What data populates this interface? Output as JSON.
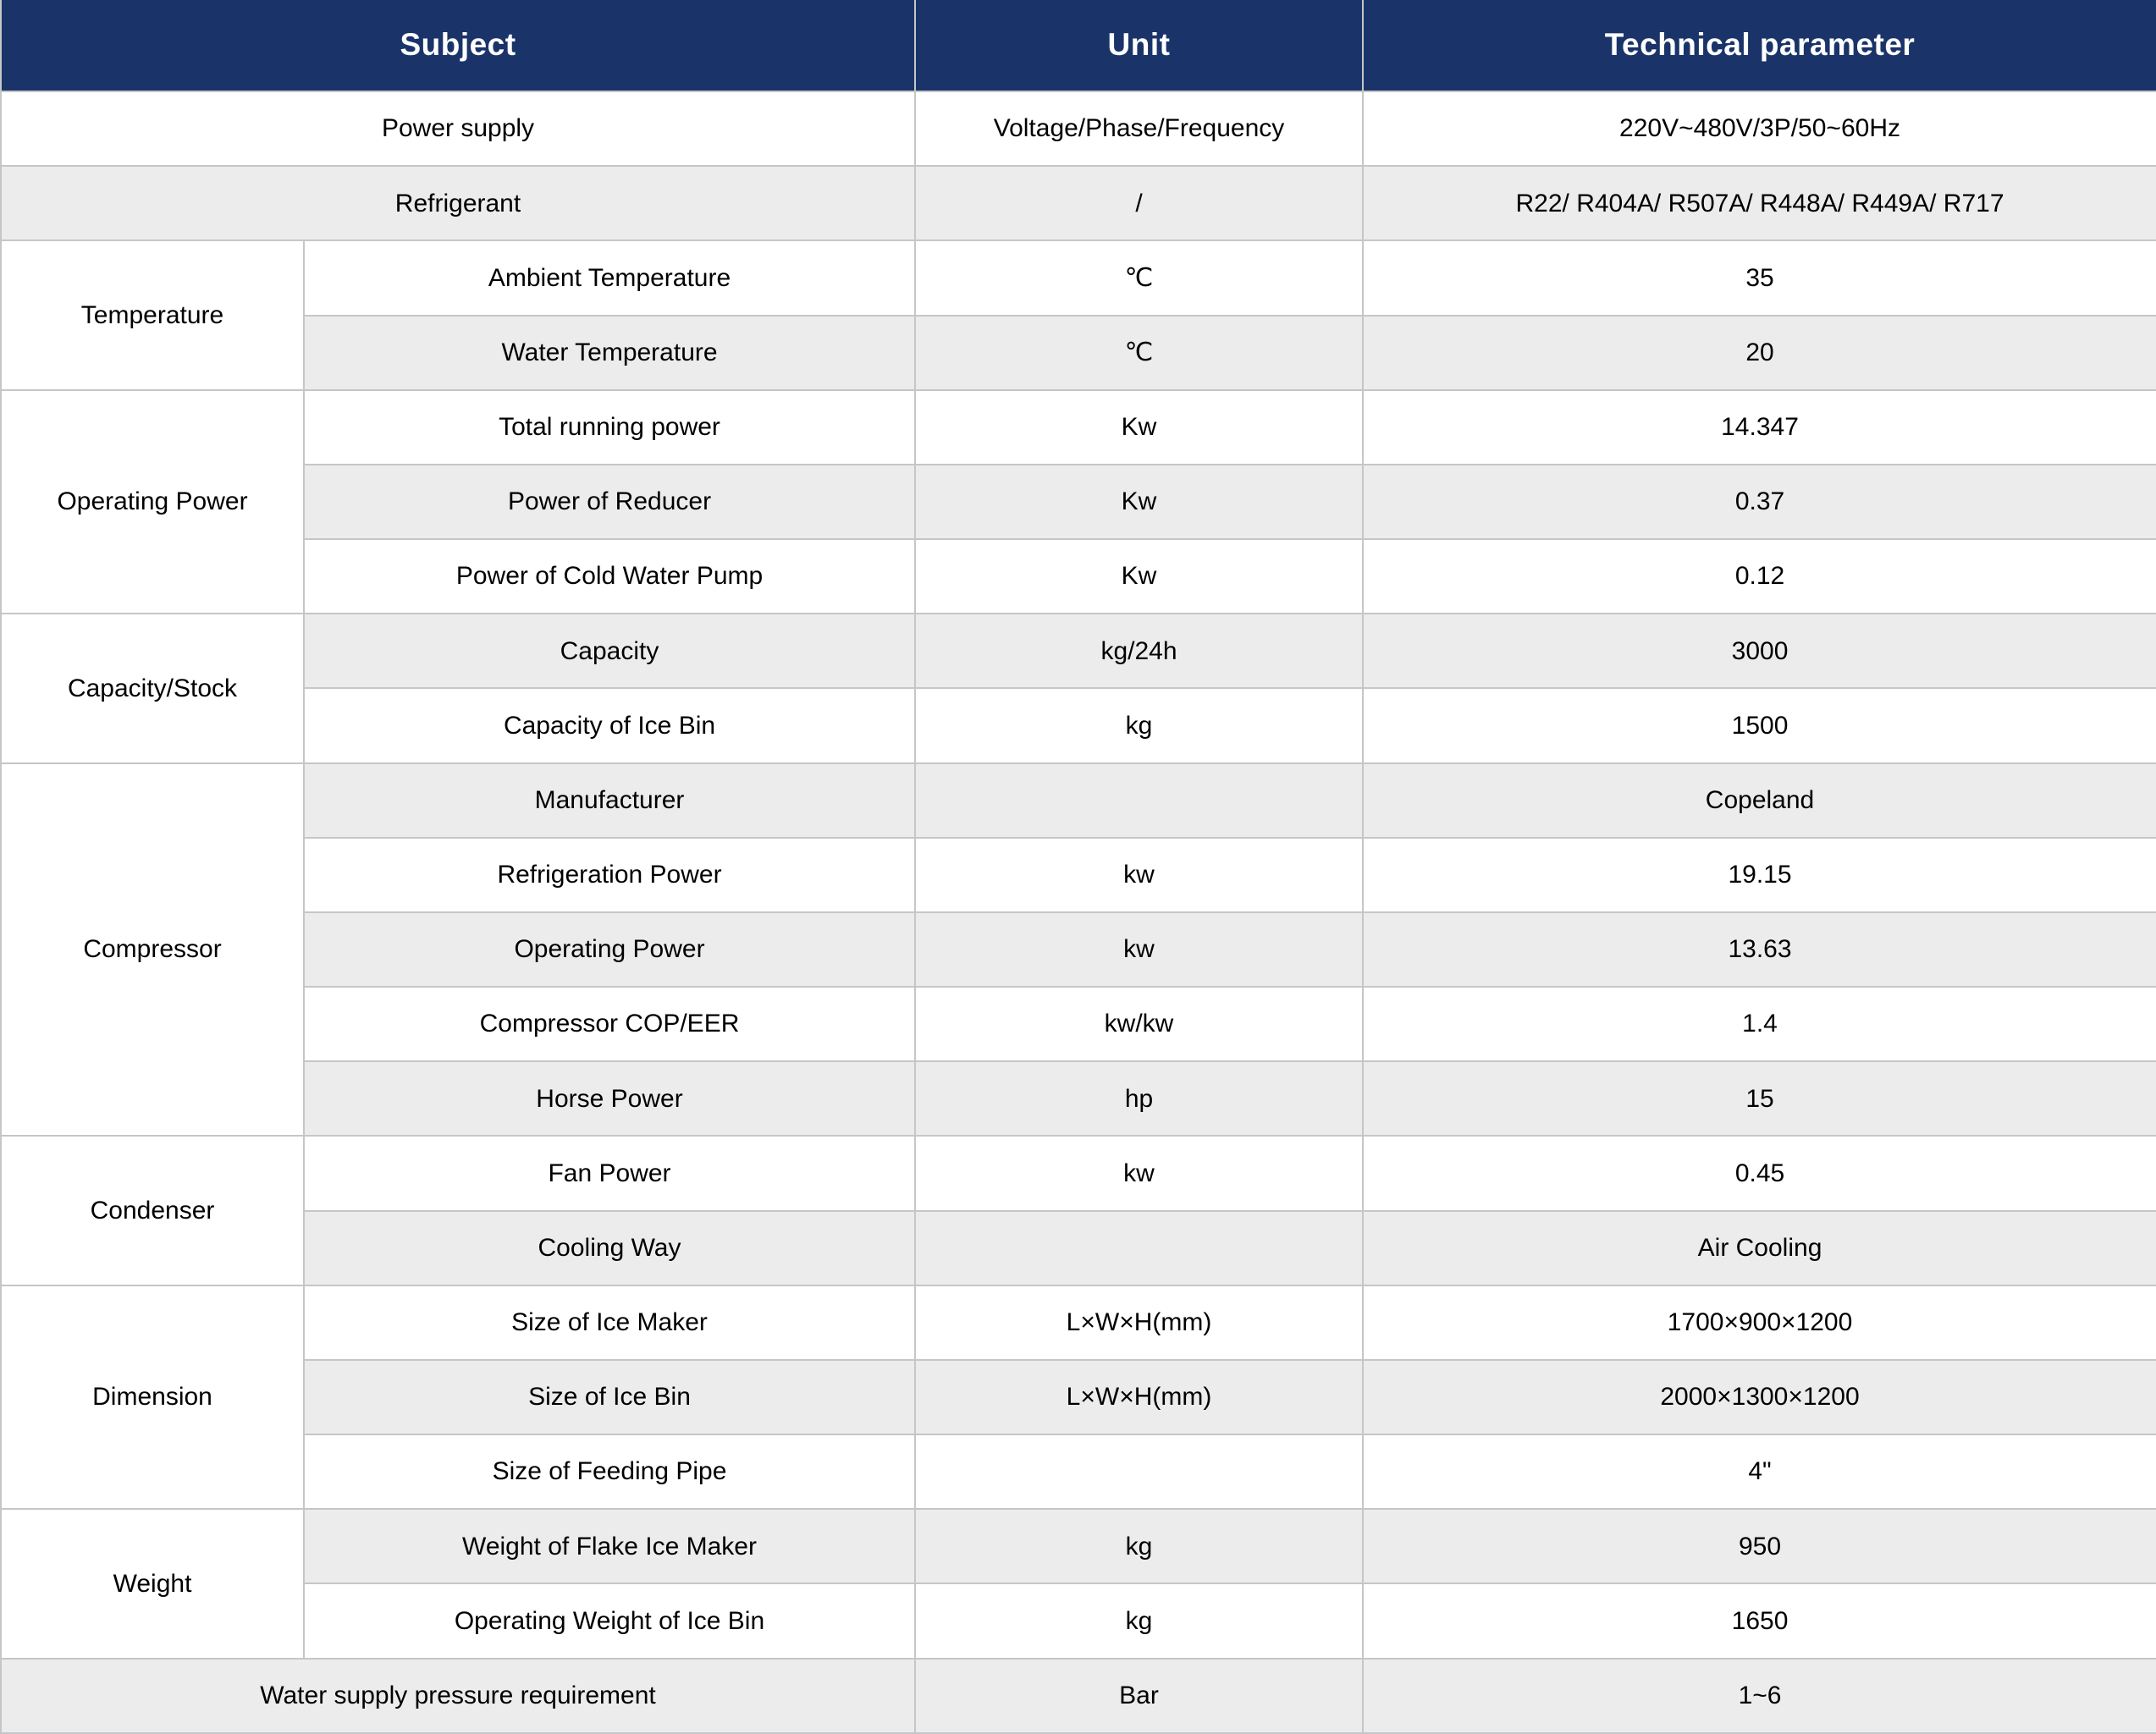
{
  "colors": {
    "header_bg": "#1a3469",
    "header_text": "#ffffff",
    "row_shaded_bg": "#ececec",
    "row_plain_bg": "#ffffff",
    "border": "#c5c6c8",
    "body_text": "#000000"
  },
  "table": {
    "headers": {
      "subject": "Subject",
      "unit": "Unit",
      "parameter": "Technical parameter"
    },
    "rows": [
      {
        "label": "Power supply",
        "unit": "Voltage/Phase/Frequency",
        "value": "220V~480V/3P/50~60Hz"
      },
      {
        "label": "Refrigerant",
        "unit": "/",
        "value": "R22/ R404A/ R507A/ R448A/ R449A/ R717"
      },
      {
        "group": "Temperature",
        "label": "Ambient Temperature",
        "unit": "℃",
        "value": "35"
      },
      {
        "label": "Water Temperature",
        "unit": "℃",
        "value": "20"
      },
      {
        "group": "Operating Power",
        "label": "Total running power",
        "unit": "Kw",
        "value": "14.347"
      },
      {
        "label": "Power of Reducer",
        "unit": "Kw",
        "value": "0.37"
      },
      {
        "label": "Power of Cold Water Pump",
        "unit": "Kw",
        "value": "0.12"
      },
      {
        "group": "Capacity/Stock",
        "label": "Capacity",
        "unit": "kg/24h",
        "value": "3000"
      },
      {
        "label": "Capacity of Ice Bin",
        "unit": "kg",
        "value": "1500"
      },
      {
        "group": "Compressor",
        "label": "Manufacturer",
        "unit": "",
        "value": "Copeland"
      },
      {
        "label": "Refrigeration Power",
        "unit": "kw",
        "value": "19.15"
      },
      {
        "label": "Operating Power",
        "unit": "kw",
        "value": "13.63"
      },
      {
        "label": "Compressor COP/EER",
        "unit": "kw/kw",
        "value": "1.4"
      },
      {
        "label": "Horse Power",
        "unit": "hp",
        "value": "15"
      },
      {
        "group": "Condenser",
        "label": "Fan Power",
        "unit": "kw",
        "value": "0.45"
      },
      {
        "label": "Cooling Way",
        "unit": "",
        "value": "Air Cooling"
      },
      {
        "group": "Dimension",
        "label": "Size of Ice Maker",
        "unit": "L×W×H(mm)",
        "value": "1700×900×1200"
      },
      {
        "label": "Size of Ice Bin",
        "unit": "L×W×H(mm)",
        "value": "2000×1300×1200"
      },
      {
        "label": "Size of Feeding Pipe",
        "unit": "",
        "value": "4\""
      },
      {
        "group": "Weight",
        "label": "Weight of Flake Ice Maker",
        "unit": "kg",
        "value": "950"
      },
      {
        "label": "Operating Weight of Ice Bin",
        "unit": "kg",
        "value": "1650"
      },
      {
        "label": "Water supply pressure requirement",
        "unit": "Bar",
        "value": "1~6"
      }
    ]
  }
}
